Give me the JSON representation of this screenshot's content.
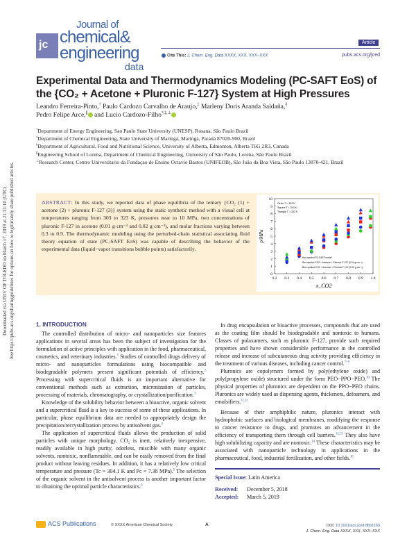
{
  "journal": {
    "name_line1": "Journal of",
    "name_line2": "chemical&",
    "name_line3": "engineering",
    "name_line4": "data",
    "logo_mark": "jce",
    "badge": "Article",
    "cite_label": "Cite This:",
    "cite_ref": "J. Chem. Eng. Data XXXX, XXX, XXX−XXX",
    "site": "pubs.acs.org/jced"
  },
  "article": {
    "title": "Experimental Data and Thermodynamics Modeling (PC-SAFT EoS) of the {CO₂ + Acetone + Pluronic F-127} System at High Pressures",
    "authors": [
      {
        "name": "Leandro Ferreira-Pinto,",
        "sup": "†"
      },
      {
        "name": "Paulo Cardozo Carvalho de Araujo,",
        "sup": "‡"
      },
      {
        "name": "Marleny Doris Aranda Saldaña,",
        "sup": "§"
      },
      {
        "name": "Pedro Felipe Arce,",
        "sup": "∥"
      },
      {
        "name": "and Lucio Cardozo-Filho",
        "sup": "*,‡,⊥"
      }
    ],
    "affiliations": [
      {
        "sup": "†",
        "text": "Department of Energy Engineering, Sao Paulo State University (UNESP), Rosana, São Paulo Brazil"
      },
      {
        "sup": "‡",
        "text": "Department of Chemical Engineering, State University of Maringá, Maringá, Paraná 87020-900, Brazil"
      },
      {
        "sup": "§",
        "text": "Department of Agricultural, Food and Nutritional Science, University of Alberta, Edmonton, Alberta T6G 2R3, Canada"
      },
      {
        "sup": "∥",
        "text": "Engineering School of Lorena, Department of Chemical Engineering, University of São Paulo, Lorena, São Paulo Brazil"
      },
      {
        "sup": "⊥",
        "text": "Research Center, Centro Universitario da Fundaçao de Ensino Octavio Bastos (UNIFEOB), São João da Boa Vista, São Paulo 13870-421, Brazil"
      }
    ],
    "abstract_label": "ABSTRACT:",
    "abstract": "In this study, we reported data of phase equilibria of the ternary {CO₂ (1) + acetone (2) + pluronic F-127 (3)} system using the static synthetic method with a visual cell at temperatures ranging from 303 to 323 K, pressures near to 10 MPa, two concentrations of pluronic F-127 in acetone (0.01 g·cm⁻³ and 0.02 g·cm⁻³), and molar fractions varying between 0.3 to 0.9. The thermodynamic modeling using the perturbed-chain statistical associating fluid theory equation of state (PC-SAFT EoS) was capable of describing the behavior of the experimental data (liquid−vapor transitions bubble points) satisfactorily."
  },
  "chart_data": {
    "type": "scatter",
    "xlabel": "x_CO2",
    "ylabel": "p/MPa",
    "xlim": [
      0.2,
      1.0
    ],
    "ylim": [
      0,
      10
    ],
    "xticks": [
      "0.2",
      "0.3",
      "0.4",
      "0.5",
      "0.6",
      "0.7",
      "0.8",
      "0.9",
      "1.0"
    ],
    "yticks": [
      "0",
      "1",
      "2",
      "3",
      "4",
      "5",
      "6",
      "7",
      "8",
      "9",
      "10"
    ],
    "grid": false,
    "legend_top": [
      "Circle   T = 303 K",
      "Square   T = 313 K",
      "Triangle   T = 323 K"
    ],
    "legend_bottom": [
      "Non-symbol   PC-SAFT model",
      "Red symbol   CO2 + Acetone + Pluronic F-127 (0.01 g·cm⁻³)",
      "Blue symbol   CO2 + Acetone + Pluronic F-127 (0.02 g·cm⁻³)"
    ],
    "colors": {
      "blue": "#1f2fe0",
      "red": "#e8201c",
      "green": "#28d028"
    },
    "points": [
      [
        0.3,
        1.5,
        "circle",
        "blue"
      ],
      [
        0.3,
        1.8,
        "square",
        "blue"
      ],
      [
        0.3,
        2.0,
        "circle",
        "green"
      ],
      [
        0.3,
        2.2,
        "triangle",
        "blue"
      ],
      [
        0.3,
        2.6,
        "triangle",
        "green"
      ],
      [
        0.4,
        2.3,
        "circle",
        "blue"
      ],
      [
        0.4,
        2.5,
        "circle",
        "red"
      ],
      [
        0.4,
        2.8,
        "square",
        "blue"
      ],
      [
        0.4,
        3.2,
        "triangle",
        "red"
      ],
      [
        0.4,
        3.4,
        "triangle",
        "blue"
      ],
      [
        0.5,
        2.9,
        "circle",
        "blue"
      ],
      [
        0.5,
        3.0,
        "circle",
        "green"
      ],
      [
        0.5,
        3.5,
        "square",
        "blue"
      ],
      [
        0.5,
        4.2,
        "triangle",
        "red"
      ],
      [
        0.5,
        4.4,
        "triangle",
        "blue"
      ],
      [
        0.6,
        3.5,
        "circle",
        "red"
      ],
      [
        0.6,
        3.7,
        "circle",
        "blue"
      ],
      [
        0.6,
        4.4,
        "square",
        "red"
      ],
      [
        0.6,
        4.5,
        "square",
        "blue"
      ],
      [
        0.6,
        5.0,
        "triangle",
        "red"
      ],
      [
        0.6,
        5.2,
        "triangle",
        "blue"
      ],
      [
        0.7,
        4.0,
        "circle",
        "red"
      ],
      [
        0.7,
        4.3,
        "circle",
        "green"
      ],
      [
        0.7,
        4.6,
        "circle",
        "blue"
      ],
      [
        0.7,
        5.2,
        "square",
        "red"
      ],
      [
        0.7,
        5.6,
        "square",
        "blue"
      ],
      [
        0.7,
        6.0,
        "triangle",
        "green"
      ],
      [
        0.7,
        6.5,
        "triangle",
        "blue"
      ],
      [
        0.8,
        4.9,
        "circle",
        "red"
      ],
      [
        0.8,
        5.2,
        "circle",
        "green"
      ],
      [
        0.8,
        5.4,
        "circle",
        "blue"
      ],
      [
        0.8,
        5.8,
        "square",
        "red"
      ],
      [
        0.8,
        6.4,
        "square",
        "blue"
      ],
      [
        0.8,
        6.9,
        "triangle",
        "red"
      ],
      [
        0.8,
        7.4,
        "triangle",
        "blue"
      ],
      [
        0.9,
        5.7,
        "circle",
        "green"
      ],
      [
        0.9,
        6.2,
        "circle",
        "blue"
      ],
      [
        0.9,
        6.9,
        "square",
        "red"
      ],
      [
        0.9,
        7.4,
        "square",
        "blue"
      ],
      [
        0.9,
        8.1,
        "triangle",
        "red"
      ],
      [
        0.9,
        8.5,
        "triangle",
        "blue"
      ],
      [
        0.98,
        6.2,
        "circle",
        "red"
      ],
      [
        0.98,
        6.4,
        "circle",
        "green"
      ],
      [
        0.98,
        7.4,
        "square",
        "red"
      ],
      [
        0.98,
        7.6,
        "square",
        "green"
      ],
      [
        0.98,
        8.4,
        "triangle",
        "green"
      ]
    ]
  },
  "intro": {
    "heading": "1. INTRODUCTION",
    "left_paragraphs": [
      [
        "The controlled distribution of micro- and nanoparticles size features applications in several areas has been the subject of investigation for the formulation of active principles with application in the food, pharmaceutical, cosmetics, and veterinary industries.",
        "1",
        " Studies of controlled drugs delivery of micro- and nanoparticles formulations using biocompatible and biodegradable polymers present significant potentials of efficiency.",
        "2",
        " Processing with supercritical fluids is an important alternative for conventional methods such as extraction, micronization of particles, processing of materials, chromatography, or crystallization/purification.",
        "3"
      ],
      [
        "Knowledge of the solubility behavior between a bioactive, organic solvent and a supercritical fluid is a key to success of some of these applications. In particular, phase equilibrium data are needed to appropriately design the precipitation/recrystallization process by antisolvent gas.",
        "4",
        "",
        ""
      ],
      [
        "The application of supercritical fluids allows the production of solid particles with unique morphology. CO₂ is inert, relatively inexpensive, readily available in high purity, odorless, miscible with many organic solvents, nontoxic, nonflammable, and can be easily removed from the final product without leaving residues. In addition, it has a relatively low critical temperature and pressure (Tc = 304.1 K and Pc = 7.38 MPa).",
        "5",
        " The selection of the organic solvent in the antisolvent process is another important factor to obtaining the optimal particle characteristics.",
        "6"
      ]
    ],
    "right_paragraphs": [
      [
        "In drug encapsulation or bioactive processes, compounds that are used as the coating film should be biodegradable and nontoxic to humans. Classes of polaxamers, such as pluronic F-127, provide such required properties and have shown considerable performance in the controlled release and increase of subcutaneous drug activity providing efficiency in the treatment of various diseases, including cancer control.",
        "7−9"
      ],
      [
        "Pluronics are copolymers formed by poly(ethylene oxide) and poly(propylene oxide) structured under the form PEO−PPO−PEO.",
        "10",
        " The physical properties of pluronics are dependent on the PPO−PEO chains. Pluronics are widely used as dispersing agents, thickeners, defoamers, and emulsifiers.",
        "11,12"
      ],
      [
        "Because of their amphiphilic nature, pluronics interact with hydrophobic surfaces and biological membranes, modifying the response to cancer resistance to drugs, and promotes an advancement in the efficiency of transporting them through cell barriers.",
        "12,13",
        " They also have high solubilizing capacity and are nontoxic.",
        "14",
        " These characteristics may be associated with nanoparticle technology in applications in the pharmaceutical, food, industrial fertilization, and other fields.",
        "10"
      ]
    ]
  },
  "meta": {
    "special_issue_label": "Special Issue:",
    "special_issue": "Latin America",
    "received_label": "Received:",
    "received": "December 5, 2018",
    "accepted_label": "Accepted:",
    "accepted": "March 5, 2019"
  },
  "footer": {
    "publisher": "ACS Publications",
    "copyright": "© XXXX American Chemical Society",
    "page": "A",
    "doi_label": "DOI:",
    "doi": "10.1021/acs.jced.8b01163",
    "citation": "J. Chem. Eng. Data XXXX, XXX, XXX−XXX"
  },
  "watermark": {
    "line1": "Downloaded via UNIV OF TOLEDO on March 17, 2019 at 21:31:10 (UTC).",
    "line2": "See https://pubs.acs.org/sharingguidelines for options on how to legitimately share published articles."
  }
}
